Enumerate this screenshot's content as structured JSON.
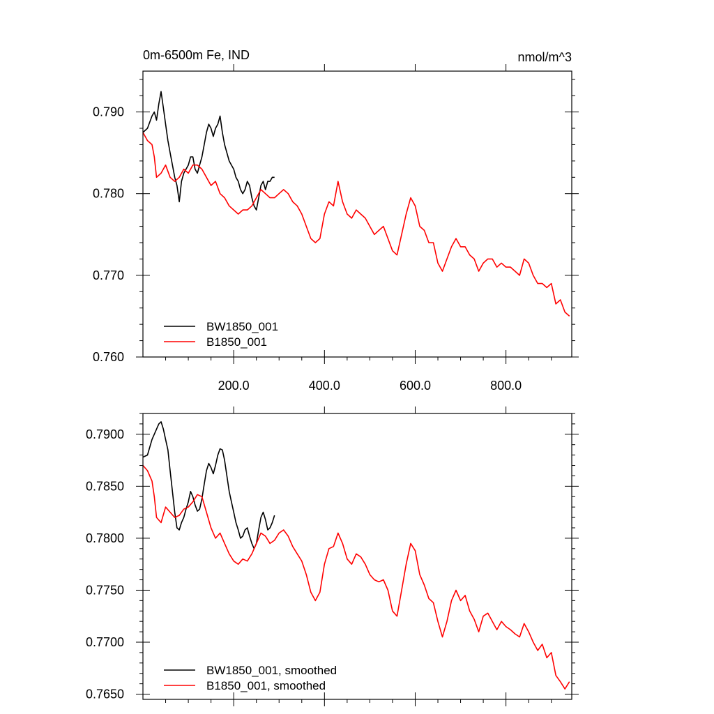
{
  "chart_data": [
    {
      "type": "line",
      "title": "0m-6500m Fe, IND",
      "units": "nmol/m^3",
      "xlim": [
        0,
        945
      ],
      "ylim": [
        0.76,
        0.795
      ],
      "x_ticks": [
        200,
        400,
        600,
        800
      ],
      "x_tick_labels": [
        "200.0",
        "400.0",
        "600.0",
        "800.0"
      ],
      "y_ticks": [
        0.76,
        0.77,
        0.78,
        0.79
      ],
      "y_tick_labels": [
        "0.760",
        "0.770",
        "0.780",
        "0.790"
      ],
      "legend_position": "bottom-left",
      "series": [
        {
          "name": "BW1850_001",
          "color": "#000000",
          "x": [
            0,
            10,
            20,
            25,
            30,
            35,
            40,
            45,
            50,
            55,
            60,
            65,
            70,
            75,
            80,
            85,
            90,
            95,
            100,
            105,
            110,
            115,
            120,
            125,
            130,
            135,
            140,
            145,
            150,
            155,
            160,
            165,
            170,
            175,
            180,
            185,
            190,
            195,
            200,
            205,
            210,
            215,
            220,
            225,
            230,
            235,
            240,
            245,
            250,
            255,
            260,
            265,
            270,
            275,
            280,
            285,
            290
          ],
          "values": [
            0.7875,
            0.788,
            0.7895,
            0.79,
            0.789,
            0.791,
            0.7925,
            0.7905,
            0.7885,
            0.7865,
            0.785,
            0.7835,
            0.782,
            0.781,
            0.779,
            0.7815,
            0.7825,
            0.783,
            0.7835,
            0.7845,
            0.7845,
            0.783,
            0.7825,
            0.7835,
            0.7845,
            0.786,
            0.7875,
            0.7885,
            0.788,
            0.787,
            0.788,
            0.7885,
            0.7895,
            0.7875,
            0.786,
            0.785,
            0.784,
            0.7835,
            0.783,
            0.782,
            0.7815,
            0.7805,
            0.78,
            0.7805,
            0.7815,
            0.781,
            0.7795,
            0.7785,
            0.778,
            0.7795,
            0.781,
            0.7815,
            0.7805,
            0.7815,
            0.7815,
            0.782,
            0.782
          ]
        },
        {
          "name": "B1850_001",
          "color": "#ff0000",
          "x": [
            0,
            10,
            20,
            25,
            30,
            40,
            50,
            60,
            70,
            80,
            90,
            100,
            110,
            120,
            130,
            140,
            150,
            160,
            170,
            180,
            190,
            200,
            210,
            220,
            230,
            240,
            250,
            260,
            270,
            280,
            290,
            300,
            310,
            320,
            330,
            340,
            350,
            360,
            370,
            380,
            390,
            400,
            410,
            420,
            430,
            440,
            450,
            460,
            470,
            480,
            490,
            500,
            510,
            520,
            530,
            540,
            550,
            560,
            570,
            580,
            590,
            600,
            610,
            620,
            630,
            640,
            650,
            660,
            670,
            680,
            690,
            700,
            710,
            720,
            730,
            740,
            750,
            760,
            770,
            780,
            790,
            800,
            810,
            820,
            830,
            840,
            850,
            860,
            870,
            880,
            890,
            900,
            910,
            920,
            930,
            940
          ],
          "values": [
            0.7875,
            0.7865,
            0.786,
            0.7845,
            0.782,
            0.7825,
            0.7835,
            0.782,
            0.7815,
            0.782,
            0.783,
            0.7825,
            0.7835,
            0.7835,
            0.783,
            0.782,
            0.781,
            0.7815,
            0.78,
            0.7795,
            0.7785,
            0.778,
            0.7775,
            0.778,
            0.778,
            0.7785,
            0.7795,
            0.7805,
            0.78,
            0.7795,
            0.7795,
            0.78,
            0.7805,
            0.78,
            0.779,
            0.7785,
            0.7775,
            0.776,
            0.7745,
            0.774,
            0.7745,
            0.7775,
            0.779,
            0.7785,
            0.7815,
            0.779,
            0.7775,
            0.777,
            0.778,
            0.7775,
            0.777,
            0.776,
            0.775,
            0.7755,
            0.776,
            0.7745,
            0.773,
            0.7725,
            0.775,
            0.7775,
            0.7795,
            0.7785,
            0.776,
            0.7755,
            0.774,
            0.774,
            0.7715,
            0.7705,
            0.772,
            0.7735,
            0.7745,
            0.7735,
            0.7735,
            0.7725,
            0.772,
            0.7705,
            0.7715,
            0.772,
            0.772,
            0.771,
            0.7715,
            0.771,
            0.771,
            0.7705,
            0.77,
            0.772,
            0.7715,
            0.77,
            0.769,
            0.769,
            0.7685,
            0.769,
            0.7665,
            0.767,
            0.7655,
            0.765
          ]
        }
      ]
    },
    {
      "type": "line",
      "xlim": [
        0,
        945
      ],
      "ylim": [
        0.7645,
        0.792
      ],
      "x_ticks": [
        200,
        400,
        600,
        800
      ],
      "y_ticks": [
        0.765,
        0.77,
        0.775,
        0.78,
        0.785,
        0.79
      ],
      "y_tick_labels": [
        "0.7650",
        "0.7700",
        "0.7750",
        "0.7800",
        "0.7850",
        "0.7900"
      ],
      "legend_position": "bottom-left",
      "series": [
        {
          "name": "BW1850_001, smoothed",
          "color": "#000000",
          "x": [
            0,
            10,
            20,
            30,
            35,
            40,
            45,
            50,
            55,
            60,
            65,
            70,
            75,
            80,
            85,
            90,
            95,
            100,
            105,
            110,
            115,
            120,
            125,
            130,
            135,
            140,
            145,
            150,
            155,
            160,
            165,
            170,
            175,
            180,
            185,
            190,
            195,
            200,
            205,
            210,
            215,
            220,
            225,
            230,
            235,
            240,
            245,
            250,
            255,
            260,
            265,
            270,
            275,
            280,
            285,
            290
          ],
          "values": [
            0.7878,
            0.788,
            0.7895,
            0.7905,
            0.791,
            0.7912,
            0.7905,
            0.7895,
            0.7885,
            0.7865,
            0.7845,
            0.7825,
            0.781,
            0.7808,
            0.7815,
            0.782,
            0.7828,
            0.7835,
            0.7845,
            0.784,
            0.7832,
            0.7826,
            0.7828,
            0.7838,
            0.7852,
            0.7865,
            0.7872,
            0.7868,
            0.7862,
            0.787,
            0.788,
            0.7886,
            0.7885,
            0.7875,
            0.786,
            0.7845,
            0.7835,
            0.7825,
            0.7815,
            0.7808,
            0.78,
            0.7802,
            0.7808,
            0.781,
            0.7802,
            0.7795,
            0.779,
            0.7795,
            0.7808,
            0.782,
            0.7825,
            0.7818,
            0.7808,
            0.781,
            0.7815,
            0.7822
          ]
        },
        {
          "name": "B1850_001, smoothed",
          "color": "#ff0000",
          "x": [
            0,
            10,
            20,
            25,
            30,
            40,
            50,
            60,
            70,
            80,
            90,
            100,
            110,
            120,
            130,
            140,
            150,
            160,
            170,
            180,
            190,
            200,
            210,
            220,
            230,
            240,
            250,
            260,
            270,
            280,
            290,
            300,
            310,
            320,
            330,
            340,
            350,
            360,
            370,
            380,
            390,
            400,
            410,
            420,
            430,
            440,
            450,
            460,
            470,
            480,
            490,
            500,
            510,
            520,
            530,
            540,
            550,
            560,
            570,
            580,
            590,
            600,
            610,
            620,
            630,
            640,
            650,
            660,
            670,
            680,
            690,
            700,
            710,
            720,
            730,
            740,
            750,
            760,
            770,
            780,
            790,
            800,
            810,
            820,
            830,
            840,
            850,
            860,
            870,
            880,
            890,
            900,
            910,
            920,
            930,
            940
          ],
          "values": [
            0.787,
            0.7865,
            0.7855,
            0.784,
            0.782,
            0.7815,
            0.783,
            0.7825,
            0.782,
            0.7822,
            0.7828,
            0.783,
            0.7835,
            0.7842,
            0.784,
            0.7825,
            0.781,
            0.78,
            0.7805,
            0.7795,
            0.7785,
            0.7778,
            0.7775,
            0.778,
            0.7778,
            0.7785,
            0.7795,
            0.7805,
            0.7802,
            0.7795,
            0.7798,
            0.7805,
            0.7808,
            0.7802,
            0.7792,
            0.7785,
            0.7778,
            0.7765,
            0.7748,
            0.774,
            0.7748,
            0.7775,
            0.779,
            0.7792,
            0.7805,
            0.7795,
            0.778,
            0.7775,
            0.7785,
            0.7782,
            0.7775,
            0.7765,
            0.776,
            0.7758,
            0.776,
            0.775,
            0.773,
            0.7725,
            0.775,
            0.7775,
            0.7795,
            0.7788,
            0.7765,
            0.7755,
            0.7742,
            0.7738,
            0.772,
            0.7705,
            0.772,
            0.774,
            0.775,
            0.774,
            0.7745,
            0.773,
            0.7722,
            0.771,
            0.7725,
            0.7728,
            0.772,
            0.7712,
            0.772,
            0.7715,
            0.7712,
            0.7708,
            0.7705,
            0.7718,
            0.771,
            0.77,
            0.7692,
            0.7698,
            0.7685,
            0.769,
            0.7668,
            0.7662,
            0.7655,
            0.7662
          ]
        }
      ]
    }
  ]
}
